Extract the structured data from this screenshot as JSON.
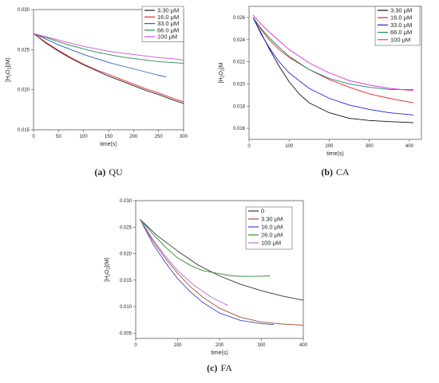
{
  "panels": [
    {
      "id": "qu",
      "caption_letter": "(a)",
      "caption_name": "QU",
      "chart_data": {
        "type": "line",
        "xlabel": "time(s)",
        "ylabel": "[H2O2](M)",
        "ylabel_parts": [
          "[H",
          "2",
          "O",
          "2",
          "](M)"
        ],
        "xlim": [
          0,
          300
        ],
        "ylim": [
          0.015,
          0.03
        ],
        "xticks": [
          0,
          50,
          100,
          150,
          200,
          250,
          300
        ],
        "yticks": [
          0.015,
          0.02,
          0.025,
          0.03
        ],
        "xtick_labels": [
          "0",
          "50",
          "100",
          "150",
          "200",
          "250",
          "300"
        ],
        "ytick_labels": [
          "0.015",
          "0.020",
          "0.025",
          "0.030"
        ],
        "legend_position": "top-right",
        "series": [
          {
            "name": "3.30 μM",
            "color": "#222222",
            "x": [
              0,
              25,
              50,
              75,
              100,
              125,
              150,
              175,
              200,
              225,
              250,
              275,
              300
            ],
            "y": [
              0.027,
              0.0258,
              0.0248,
              0.0239,
              0.0231,
              0.0224,
              0.0217,
              0.0211,
              0.0205,
              0.0199,
              0.0194,
              0.0188,
              0.0183
            ]
          },
          {
            "name": "16.0 μM",
            "color": "#e8262a",
            "x": [
              0,
              25,
              50,
              75,
              100,
              125,
              150,
              175,
              200,
              225,
              250,
              275,
              300
            ],
            "y": [
              0.027,
              0.0259,
              0.0249,
              0.024,
              0.0232,
              0.0225,
              0.0219,
              0.0213,
              0.0207,
              0.0201,
              0.0196,
              0.019,
              0.0185
            ]
          },
          {
            "name": "33.0 μM",
            "color": "#2b5fbf",
            "x": [
              0,
              25,
              50,
              75,
              100,
              125,
              150,
              175,
              200,
              225,
              250,
              265
            ],
            "y": [
              0.027,
              0.0263,
              0.0256,
              0.025,
              0.0244,
              0.0239,
              0.0234,
              0.023,
              0.0226,
              0.0222,
              0.0218,
              0.0216
            ]
          },
          {
            "name": "66.0 μM",
            "color": "#1f8f4a",
            "x": [
              0,
              25,
              50,
              75,
              100,
              125,
              150,
              175,
              200,
              225,
              250,
              275,
              300
            ],
            "y": [
              0.027,
              0.0265,
              0.026,
              0.0255,
              0.0251,
              0.0247,
              0.0244,
              0.0241,
              0.0239,
              0.0237,
              0.0235,
              0.0234,
              0.0233
            ]
          },
          {
            "name": "100 μM",
            "color": "#cf4fd6",
            "x": [
              0,
              25,
              50,
              75,
              100,
              125,
              150,
              175,
              200,
              225,
              250,
              275,
              300
            ],
            "y": [
              0.027,
              0.0266,
              0.0262,
              0.0258,
              0.0254,
              0.0251,
              0.0248,
              0.0246,
              0.0244,
              0.0242,
              0.024,
              0.0239,
              0.0237
            ]
          }
        ]
      }
    },
    {
      "id": "ca",
      "caption_letter": "(b)",
      "caption_name": "CA",
      "chart_data": {
        "type": "line",
        "xlabel": "time(s)",
        "ylabel": "[H2O2]M",
        "ylabel_parts": [
          "[H",
          "2",
          "O",
          "2",
          "]M"
        ],
        "xlim": [
          0,
          430
        ],
        "ylim": [
          0.015,
          0.027
        ],
        "xticks": [
          0,
          100,
          200,
          300,
          400
        ],
        "yticks": [
          0.016,
          0.018,
          0.02,
          0.022,
          0.024,
          0.026
        ],
        "xtick_labels": [
          "0",
          "100",
          "200",
          "300",
          "400"
        ],
        "ytick_labels": [
          "0.016",
          "0.018",
          "0.020",
          "0.022",
          "0.024",
          "0.026"
        ],
        "legend_position": "top-right",
        "series": [
          {
            "name": "3.30 μM",
            "color": "#111111",
            "x": [
              10,
              30,
              50,
              75,
              100,
              125,
              150,
              200,
              250,
              300,
              350,
              410
            ],
            "y": [
              0.026,
              0.0246,
              0.0232,
              0.0216,
              0.0202,
              0.0191,
              0.0183,
              0.0174,
              0.0169,
              0.0167,
              0.0166,
              0.0165
            ]
          },
          {
            "name": "16.0 μM",
            "color": "#e8262a",
            "x": [
              10,
              30,
              50,
              75,
              100,
              150,
              200,
              250,
              300,
              350,
              410
            ],
            "y": [
              0.026,
              0.0249,
              0.024,
              0.0231,
              0.0224,
              0.0213,
              0.0204,
              0.0197,
              0.0191,
              0.0187,
              0.0183
            ]
          },
          {
            "name": "33.0 μM",
            "color": "#2222cc",
            "x": [
              10,
              30,
              50,
              75,
              100,
              150,
              200,
              250,
              300,
              350,
              410
            ],
            "y": [
              0.026,
              0.0245,
              0.0233,
              0.022,
              0.021,
              0.0196,
              0.0187,
              0.0181,
              0.0177,
              0.0174,
              0.0172
            ]
          },
          {
            "name": "66.0 μM",
            "color": "#178a6a",
            "x": [
              10,
              30,
              50,
              75,
              100,
              150,
              200,
              250,
              300,
              350,
              410
            ],
            "y": [
              0.026,
              0.025,
              0.0242,
              0.0233,
              0.0225,
              0.0213,
              0.0205,
              0.02,
              0.0197,
              0.0195,
              0.0195
            ]
          },
          {
            "name": "100 μM",
            "color": "#e22ad8",
            "x": [
              10,
              30,
              50,
              75,
              100,
              150,
              200,
              250,
              300,
              350,
              410
            ],
            "y": [
              0.0262,
              0.0254,
              0.0247,
              0.0239,
              0.0231,
              0.0219,
              0.021,
              0.0203,
              0.0199,
              0.0196,
              0.0194
            ]
          }
        ]
      }
    },
    {
      "id": "fa",
      "caption_letter": "(c)",
      "caption_name": "FA",
      "chart_data": {
        "type": "line",
        "xlabel": "time(s)",
        "ylabel": "[H2O2](M)",
        "ylabel_parts": [
          "[H",
          "2",
          "O",
          "2",
          "](M)"
        ],
        "xlim": [
          0,
          400
        ],
        "ylim": [
          0.004,
          0.03
        ],
        "xticks": [
          0,
          100,
          200,
          300,
          400
        ],
        "yticks": [
          0.005,
          0.01,
          0.015,
          0.02,
          0.025,
          0.03
        ],
        "xtick_labels": [
          "0",
          "100",
          "200",
          "300",
          "400"
        ],
        "ytick_labels": [
          "0.005",
          "0.010",
          "0.015",
          "0.020",
          "0.025",
          "0.030"
        ],
        "legend_position": "top-right",
        "series": [
          {
            "name": "0",
            "color": "#333333",
            "x": [
              10,
              50,
              100,
              150,
              200,
              250,
              300,
              350,
              400
            ],
            "y": [
              0.0265,
              0.0235,
              0.0205,
              0.0178,
              0.0158,
              0.0142,
              0.013,
              0.012,
              0.0112
            ]
          },
          {
            "name": "3.30 μM",
            "color": "#a0522d",
            "x": [
              10,
              40,
              70,
              100,
              130,
              160,
              200,
              250,
              300,
              350,
              400
            ],
            "y": [
              0.0265,
              0.0225,
              0.0192,
              0.0163,
              0.0138,
              0.0118,
              0.0097,
              0.008,
              0.0071,
              0.0067,
              0.0065
            ]
          },
          {
            "name": "16.0 μM",
            "color": "#4444cc",
            "x": [
              10,
              40,
              70,
              100,
              130,
              160,
              200,
              250,
              300,
              330
            ],
            "y": [
              0.0265,
              0.022,
              0.0184,
              0.0153,
              0.0128,
              0.0108,
              0.0088,
              0.0074,
              0.0068,
              0.0066
            ]
          },
          {
            "name": "26.0 μM",
            "color": "#2e8b2e",
            "x": [
              10,
              40,
              70,
              100,
              130,
              160,
              200,
              230,
              260,
              290,
              320
            ],
            "y": [
              0.0265,
              0.0238,
              0.0213,
              0.0192,
              0.0178,
              0.0168,
              0.0162,
              0.0158,
              0.0157,
              0.0157,
              0.0158
            ]
          },
          {
            "name": "100 μM",
            "color": "#b070d8",
            "x": [
              10,
              40,
              70,
              100,
              140,
              180,
              220
            ],
            "y": [
              0.0265,
              0.0228,
              0.0196,
              0.0168,
              0.014,
              0.0118,
              0.0102
            ]
          }
        ]
      }
    }
  ]
}
